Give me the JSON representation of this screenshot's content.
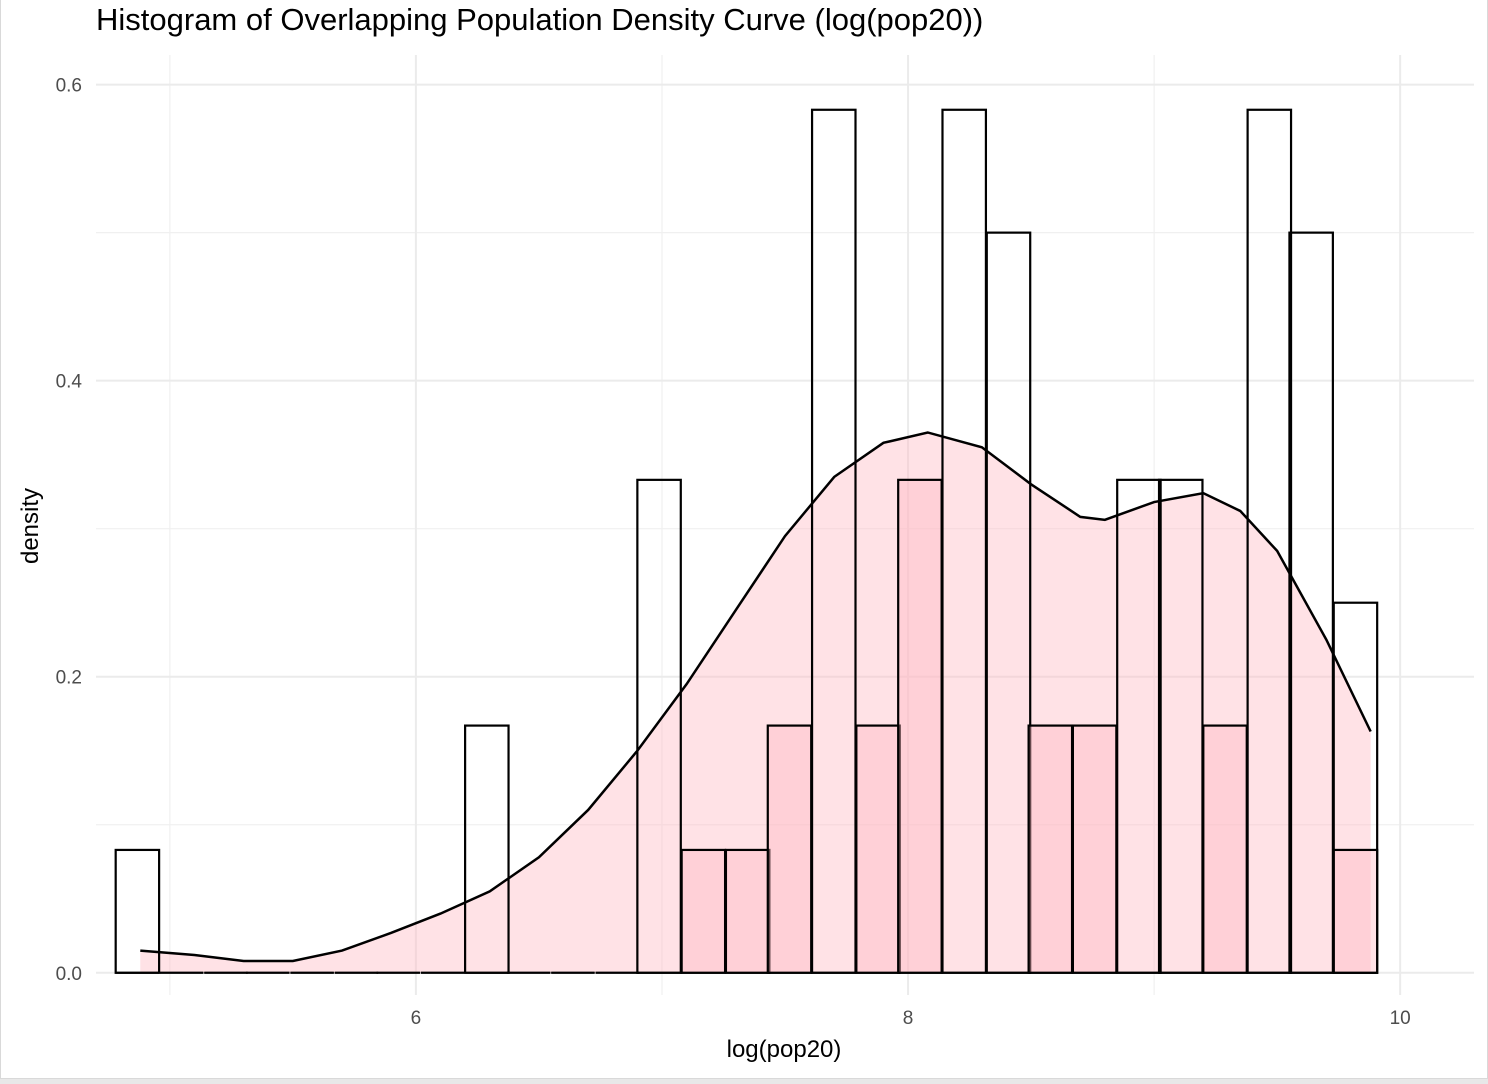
{
  "chart_data": {
    "type": "bar",
    "title": "Histogram of Overlapping Population Density Curve (log(pop20))",
    "xlabel": "log(pop20)",
    "ylabel": "density",
    "xlim": [
      4.7,
      10.3
    ],
    "ylim": [
      -0.015,
      0.62
    ],
    "x_ticks": [
      6,
      8,
      10
    ],
    "y_ticks": [
      0.0,
      0.2,
      0.4,
      0.6
    ],
    "grid": true,
    "bin_width": 0.1765,
    "bins_x0": [
      4.78,
      4.96,
      5.14,
      5.31,
      5.49,
      5.67,
      5.84,
      6.02,
      6.2,
      6.37,
      6.55,
      6.73,
      6.9,
      7.08,
      7.26,
      7.43,
      7.61,
      7.79,
      7.96,
      8.14,
      8.32,
      8.49,
      8.67,
      8.85,
      9.02,
      9.2,
      9.38,
      9.55,
      9.73
    ],
    "series": [
      {
        "name": "",
        "fill": "#ffffff",
        "stroke": "#000000",
        "values": [
          0.083,
          0,
          0,
          0,
          0,
          0,
          0,
          0,
          0.167,
          0,
          0,
          0,
          0.333,
          0,
          0,
          0,
          0.583,
          0,
          0,
          0.583,
          0.5,
          0,
          0,
          0.333,
          0.333,
          0,
          0.583,
          0.5,
          0.25
        ]
      },
      {
        "name": "",
        "fill": "#ffb6c1",
        "fill_opacity": 0.4,
        "stroke": "#000000",
        "values": [
          0,
          0,
          0,
          0,
          0,
          0,
          0,
          0,
          0,
          0,
          0,
          0,
          0,
          0.083,
          0.083,
          0.167,
          0,
          0.167,
          0.333,
          0,
          0,
          0.167,
          0.167,
          0,
          0,
          0.167,
          0,
          0,
          0.083
        ]
      }
    ],
    "density_curve": {
      "color": "#000000",
      "fill": "#ffb6c1",
      "x": [
        4.88,
        5.1,
        5.3,
        5.5,
        5.7,
        5.9,
        6.1,
        6.3,
        6.5,
        6.7,
        6.9,
        7.1,
        7.3,
        7.5,
        7.7,
        7.9,
        8.08,
        8.3,
        8.5,
        8.7,
        8.8,
        9.0,
        9.2,
        9.35,
        9.5,
        9.7,
        9.88
      ],
      "y": [
        0.015,
        0.012,
        0.008,
        0.008,
        0.015,
        0.027,
        0.04,
        0.055,
        0.078,
        0.11,
        0.15,
        0.195,
        0.245,
        0.295,
        0.335,
        0.358,
        0.365,
        0.355,
        0.33,
        0.308,
        0.306,
        0.318,
        0.324,
        0.312,
        0.285,
        0.225,
        0.163
      ]
    }
  }
}
